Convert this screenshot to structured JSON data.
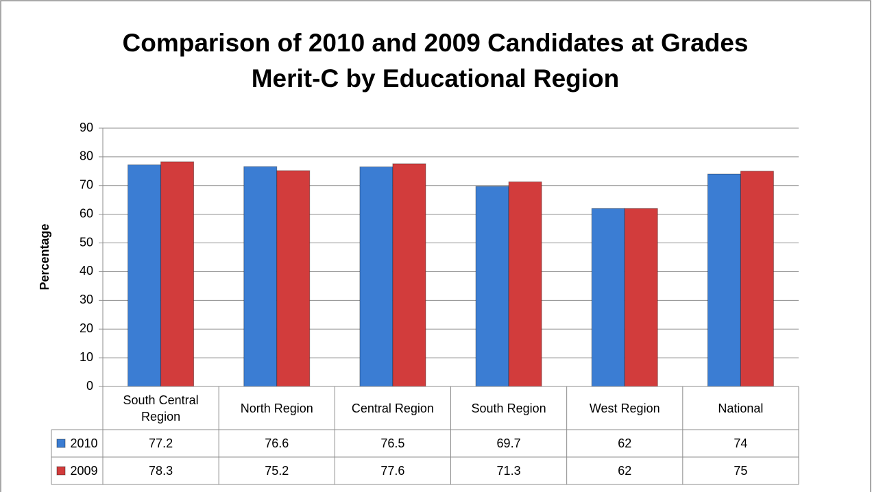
{
  "chart_data": {
    "type": "bar",
    "title": "Comparison of 2010 and 2009 Candidates at Grades Merit-C by Educational Region",
    "y_label": "Percentage",
    "categories": [
      "South Central Region",
      "North Region",
      "Central Region",
      "South Region",
      "West Region",
      "National"
    ],
    "series": [
      {
        "name": "2010",
        "color": "#3b7dd3",
        "values": [
          77.2,
          76.6,
          76.5,
          69.7,
          62,
          74
        ]
      },
      {
        "name": "2009",
        "color": "#d23c3c",
        "values": [
          78.3,
          75.2,
          77.6,
          71.3,
          62,
          75
        ]
      }
    ],
    "ylim": [
      0,
      90
    ],
    "yticks": [
      0,
      10,
      20,
      30,
      40,
      50,
      60,
      70,
      80,
      90
    ],
    "grid": true,
    "data_table": true
  }
}
